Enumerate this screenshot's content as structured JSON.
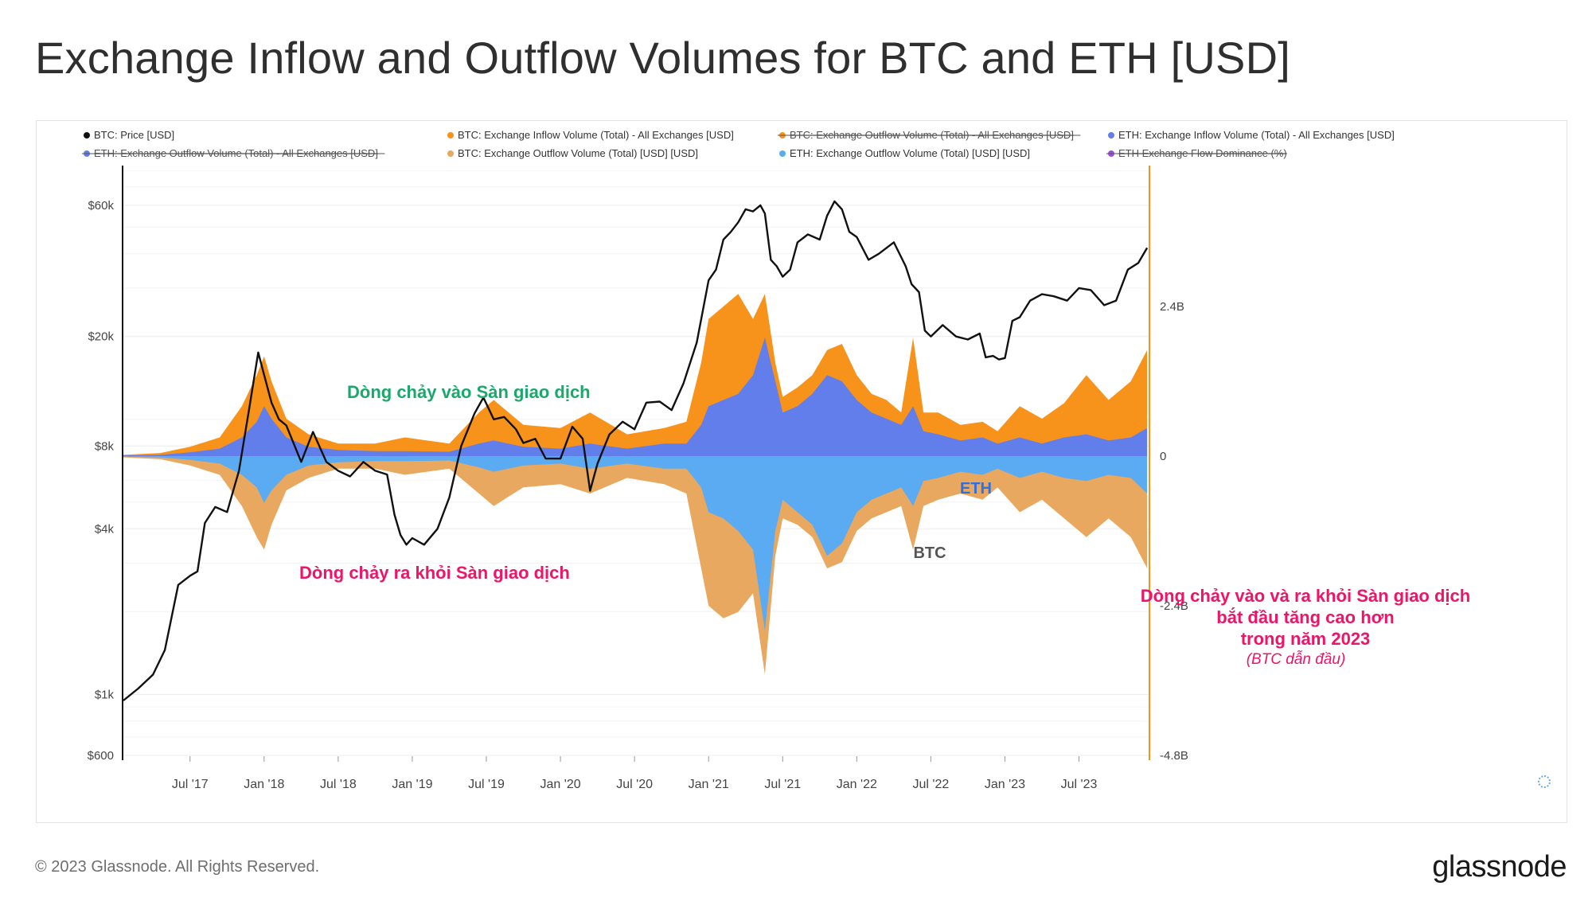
{
  "page": {
    "title": "Exchange Inflow and Outflow Volumes for BTC and ETH [USD]",
    "copyright": "© 2023 Glassnode. All Rights Reserved.",
    "brand": "glassnode"
  },
  "chart_data": {
    "type": "area",
    "title": "Exchange Inflow and Outflow Volumes for BTC and ETH [USD]",
    "legend": [
      {
        "label": "BTC: Price [USD]",
        "color": "#111111",
        "active": true
      },
      {
        "label": "BTC: Exchange Inflow Volume (Total) - All Exchanges [USD]",
        "color": "#f7931a",
        "active": true
      },
      {
        "label": "BTC: Exchange Outflow Volume (Total) - All Exchanges [USD]",
        "color": "#f7931a",
        "active": false
      },
      {
        "label": "ETH: Exchange Inflow Volume (Total) - All Exchanges [USD]",
        "color": "#627eea",
        "active": true
      },
      {
        "label": "ETH: Exchange Outflow Volume (Total) - All Exchanges [USD]",
        "color": "#627eea",
        "active": false
      },
      {
        "label": "BTC: Exchange Outflow Volume (Total) [USD] [USD]",
        "color": "#e8a860",
        "active": true
      },
      {
        "label": "ETH: Exchange Outflow Volume (Total) [USD] [USD]",
        "color": "#5aabf2",
        "active": true
      },
      {
        "label": "ETH Exchange Flow Dominance (%)",
        "color": "#9b4de0",
        "active": false
      }
    ],
    "x_ticks": [
      "Jul '17",
      "Jan '18",
      "Jul '18",
      "Jan '19",
      "Jul '19",
      "Jan '20",
      "Jul '20",
      "Jan '21",
      "Jul '21",
      "Jan '22",
      "Jul '22",
      "Jan '23",
      "Jul '23"
    ],
    "x_tick_positions": [
      2017.5,
      2018.0,
      2018.5,
      2019.0,
      2019.5,
      2020.0,
      2020.5,
      2021.0,
      2021.5,
      2022.0,
      2022.5,
      2023.0,
      2023.5
    ],
    "x_range": [
      2017.05,
      2023.97
    ],
    "y_left": {
      "scale": "log",
      "range": [
        600,
        90000
      ],
      "ticks": [
        {
          "value": 600,
          "label": "$600"
        },
        {
          "value": 1000,
          "label": "$1k"
        },
        {
          "value": 4000,
          "label": "$4k"
        },
        {
          "value": 8000,
          "label": "$8k"
        },
        {
          "value": 20000,
          "label": "$20k"
        },
        {
          "value": 60000,
          "label": "$60k"
        }
      ]
    },
    "y_right": {
      "scale": "linear",
      "range_billions": [
        -4.8,
        4.8
      ],
      "ticks": [
        {
          "value": 2.4,
          "label": "2.4B"
        },
        {
          "value": 0,
          "label": "0"
        },
        {
          "value": -2.4,
          "label": "-2.4B"
        },
        {
          "value": -4.8,
          "label": "-4.8B"
        }
      ]
    },
    "series": [
      {
        "name": "BTC: Price [USD]",
        "axis": "left",
        "color": "#111111",
        "x": [
          2017.05,
          2017.15,
          2017.25,
          2017.33,
          2017.42,
          2017.5,
          2017.55,
          2017.6,
          2017.67,
          2017.75,
          2017.83,
          2017.9,
          2017.96,
          2018.0,
          2018.05,
          2018.1,
          2018.15,
          2018.25,
          2018.33,
          2018.42,
          2018.5,
          2018.58,
          2018.67,
          2018.75,
          2018.83,
          2018.88,
          2018.92,
          2018.96,
          2019.0,
          2019.08,
          2019.17,
          2019.25,
          2019.33,
          2019.42,
          2019.48,
          2019.55,
          2019.62,
          2019.7,
          2019.75,
          2019.83,
          2019.9,
          2020.0,
          2020.08,
          2020.15,
          2020.2,
          2020.25,
          2020.33,
          2020.42,
          2020.5,
          2020.58,
          2020.67,
          2020.75,
          2020.83,
          2020.92,
          2021.0,
          2021.05,
          2021.1,
          2021.15,
          2021.2,
          2021.25,
          2021.3,
          2021.35,
          2021.38,
          2021.42,
          2021.46,
          2021.5,
          2021.55,
          2021.6,
          2021.67,
          2021.75,
          2021.8,
          2021.85,
          2021.9,
          2021.95,
          2022.0,
          2022.08,
          2022.15,
          2022.25,
          2022.33,
          2022.37,
          2022.42,
          2022.46,
          2022.5,
          2022.58,
          2022.67,
          2022.75,
          2022.83,
          2022.87,
          2022.92,
          2022.96,
          2023.0,
          2023.05,
          2023.1,
          2023.17,
          2023.25,
          2023.33,
          2023.42,
          2023.5,
          2023.58,
          2023.67,
          2023.75,
          2023.83,
          2023.9,
          2023.96
        ],
        "values": [
          950,
          1050,
          1180,
          1450,
          2500,
          2700,
          2800,
          4200,
          4800,
          4600,
          6500,
          11000,
          17500,
          14500,
          11500,
          10000,
          9500,
          7000,
          9000,
          7000,
          6500,
          6200,
          7000,
          6500,
          6300,
          4500,
          3800,
          3500,
          3700,
          3500,
          4000,
          5200,
          8000,
          10500,
          12000,
          10000,
          10200,
          9200,
          8200,
          8500,
          7200,
          7200,
          9400,
          8500,
          5500,
          6900,
          8800,
          9800,
          9200,
          11500,
          11600,
          10800,
          13500,
          19000,
          32000,
          35000,
          45000,
          48000,
          52000,
          58000,
          57000,
          60000,
          56000,
          38000,
          36000,
          33000,
          35000,
          44000,
          47000,
          45000,
          55000,
          62000,
          58000,
          48000,
          46000,
          38000,
          40000,
          44000,
          36000,
          31000,
          29000,
          21000,
          20000,
          22000,
          20000,
          19500,
          20500,
          16800,
          17000,
          16500,
          16700,
          22800,
          23500,
          27000,
          28500,
          28000,
          27000,
          30000,
          29500,
          26000,
          27000,
          35000,
          37000,
          42000
        ]
      },
      {
        "name": "BTC: Exchange Inflow Volume (Total) - All Exchanges [USD]",
        "axis": "right",
        "units": "billions USD",
        "color": "#f7931a",
        "x": [
          2017.05,
          2017.3,
          2017.5,
          2017.7,
          2017.85,
          2017.95,
          2018.0,
          2018.05,
          2018.15,
          2018.3,
          2018.5,
          2018.75,
          2018.95,
          2019.25,
          2019.45,
          2019.55,
          2019.75,
          2020.0,
          2020.2,
          2020.45,
          2020.7,
          2020.85,
          2020.95,
          2021.0,
          2021.1,
          2021.2,
          2021.3,
          2021.38,
          2021.45,
          2021.5,
          2021.6,
          2021.7,
          2021.8,
          2021.9,
          2022.0,
          2022.1,
          2022.2,
          2022.3,
          2022.38,
          2022.45,
          2022.55,
          2022.7,
          2022.85,
          2022.95,
          2023.1,
          2023.25,
          2023.4,
          2023.55,
          2023.7,
          2023.85,
          2023.96
        ],
        "values": [
          0.02,
          0.05,
          0.15,
          0.3,
          0.8,
          1.3,
          1.6,
          1.2,
          0.6,
          0.35,
          0.2,
          0.2,
          0.3,
          0.2,
          0.7,
          0.9,
          0.5,
          0.45,
          0.7,
          0.35,
          0.45,
          0.55,
          1.5,
          2.2,
          2.4,
          2.6,
          2.2,
          2.6,
          1.5,
          0.95,
          1.1,
          1.3,
          1.7,
          1.8,
          1.3,
          1.0,
          0.9,
          0.7,
          1.9,
          0.7,
          0.7,
          0.5,
          0.55,
          0.4,
          0.8,
          0.6,
          0.85,
          1.3,
          0.9,
          1.2,
          1.7
        ]
      },
      {
        "name": "ETH: Exchange Inflow Volume (Total) - All Exchanges [USD]",
        "axis": "right",
        "units": "billions USD",
        "color": "#627eea",
        "x": [
          2017.05,
          2017.3,
          2017.5,
          2017.7,
          2017.85,
          2017.95,
          2018.0,
          2018.05,
          2018.15,
          2018.3,
          2018.5,
          2018.75,
          2018.95,
          2019.25,
          2019.45,
          2019.55,
          2019.75,
          2020.0,
          2020.2,
          2020.45,
          2020.7,
          2020.85,
          2020.95,
          2021.0,
          2021.1,
          2021.2,
          2021.3,
          2021.38,
          2021.45,
          2021.5,
          2021.6,
          2021.7,
          2021.8,
          2021.9,
          2022.0,
          2022.1,
          2022.2,
          2022.3,
          2022.38,
          2022.45,
          2022.55,
          2022.7,
          2022.85,
          2022.95,
          2023.1,
          2023.25,
          2023.4,
          2023.55,
          2023.7,
          2023.85,
          2023.96
        ],
        "values": [
          0.01,
          0.02,
          0.06,
          0.12,
          0.3,
          0.55,
          0.8,
          0.6,
          0.3,
          0.15,
          0.1,
          0.08,
          0.08,
          0.07,
          0.2,
          0.25,
          0.15,
          0.12,
          0.2,
          0.12,
          0.2,
          0.2,
          0.5,
          0.8,
          0.9,
          1.0,
          1.3,
          1.9,
          1.2,
          0.7,
          0.8,
          1.0,
          1.3,
          1.2,
          0.9,
          0.7,
          0.6,
          0.5,
          0.8,
          0.4,
          0.35,
          0.25,
          0.3,
          0.2,
          0.3,
          0.2,
          0.3,
          0.35,
          0.25,
          0.3,
          0.45
        ]
      },
      {
        "name": "BTC: Exchange Outflow Volume (Total) [USD] [USD]",
        "axis": "right",
        "units": "billions USD",
        "color": "#e8a860",
        "x": [
          2017.05,
          2017.3,
          2017.5,
          2017.7,
          2017.85,
          2017.95,
          2018.0,
          2018.05,
          2018.15,
          2018.3,
          2018.5,
          2018.75,
          2018.95,
          2019.25,
          2019.45,
          2019.55,
          2019.75,
          2020.0,
          2020.2,
          2020.45,
          2020.7,
          2020.85,
          2020.95,
          2021.0,
          2021.1,
          2021.2,
          2021.3,
          2021.38,
          2021.45,
          2021.5,
          2021.6,
          2021.7,
          2021.8,
          2021.9,
          2022.0,
          2022.1,
          2022.2,
          2022.3,
          2022.38,
          2022.45,
          2022.55,
          2022.7,
          2022.85,
          2022.95,
          2023.1,
          2023.25,
          2023.4,
          2023.55,
          2023.7,
          2023.85,
          2023.96
        ],
        "values": [
          -0.02,
          -0.05,
          -0.15,
          -0.3,
          -0.8,
          -1.3,
          -1.5,
          -1.1,
          -0.55,
          -0.35,
          -0.2,
          -0.2,
          -0.3,
          -0.2,
          -0.6,
          -0.8,
          -0.5,
          -0.45,
          -0.6,
          -0.35,
          -0.45,
          -0.6,
          -1.8,
          -2.4,
          -2.6,
          -2.5,
          -2.2,
          -3.5,
          -1.6,
          -1.0,
          -1.1,
          -1.3,
          -1.8,
          -1.7,
          -1.2,
          -1.0,
          -0.9,
          -0.8,
          -1.5,
          -0.8,
          -0.7,
          -0.6,
          -0.7,
          -0.5,
          -0.9,
          -0.7,
          -1.0,
          -1.3,
          -1.0,
          -1.3,
          -1.8
        ]
      },
      {
        "name": "ETH: Exchange Outflow Volume (Total) [USD] [USD]",
        "axis": "right",
        "units": "billions USD",
        "color": "#5aabf2",
        "x": [
          2017.05,
          2017.3,
          2017.5,
          2017.7,
          2017.85,
          2017.95,
          2018.0,
          2018.05,
          2018.15,
          2018.3,
          2018.5,
          2018.75,
          2018.95,
          2019.25,
          2019.45,
          2019.55,
          2019.75,
          2020.0,
          2020.2,
          2020.45,
          2020.7,
          2020.85,
          2020.95,
          2021.0,
          2021.1,
          2021.2,
          2021.3,
          2021.38,
          2021.45,
          2021.5,
          2021.6,
          2021.7,
          2021.8,
          2021.9,
          2022.0,
          2022.1,
          2022.2,
          2022.3,
          2022.38,
          2022.45,
          2022.55,
          2022.7,
          2022.85,
          2022.95,
          2023.1,
          2023.25,
          2023.4,
          2023.55,
          2023.7,
          2023.85,
          2023.96
        ],
        "values": [
          -0.01,
          -0.02,
          -0.06,
          -0.12,
          -0.3,
          -0.5,
          -0.75,
          -0.55,
          -0.3,
          -0.15,
          -0.1,
          -0.08,
          -0.08,
          -0.07,
          -0.18,
          -0.25,
          -0.15,
          -0.12,
          -0.2,
          -0.12,
          -0.2,
          -0.2,
          -0.5,
          -0.9,
          -1.0,
          -1.2,
          -1.5,
          -2.8,
          -1.2,
          -0.7,
          -0.9,
          -1.1,
          -1.6,
          -1.4,
          -0.9,
          -0.7,
          -0.6,
          -0.5,
          -0.8,
          -0.4,
          -0.35,
          -0.25,
          -0.3,
          -0.2,
          -0.35,
          -0.25,
          -0.35,
          -0.4,
          -0.3,
          -0.35,
          -0.6
        ]
      }
    ],
    "annotations": [
      {
        "text": "Dòng chảy vào Sàn giao dịch",
        "color": "#1aa86b"
      },
      {
        "text": "Dòng chảy ra khỏi Sàn giao dịch",
        "color": "#ee1467"
      },
      {
        "text": "ETH",
        "color": "#2f6fe0"
      },
      {
        "text": "BTC",
        "color": "#555555"
      },
      {
        "text": "Dòng chảy vào và ra khỏi Sàn giao dịch",
        "color": "#ee1467"
      },
      {
        "text": "bắt đầu tăng cao hơn",
        "color": "#ee1467"
      },
      {
        "text": "trong năm 2023",
        "color": "#ee1467"
      },
      {
        "text": "(BTC dẫn đầu)",
        "color": "#ee1467"
      }
    ]
  }
}
